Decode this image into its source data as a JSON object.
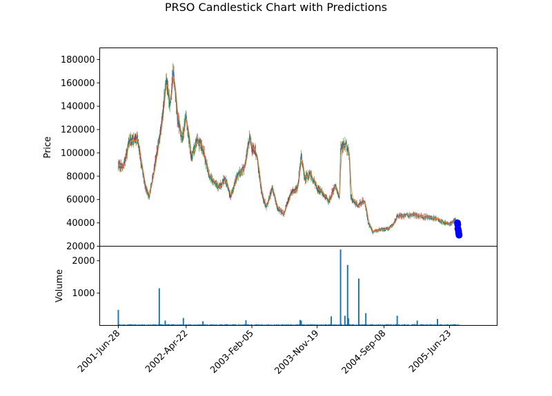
{
  "chart_data": [
    {
      "type": "candlestick",
      "title": "PRSO Candlestick Chart with Predictions",
      "ylabel": "Price",
      "ylim": [
        20000,
        190000
      ],
      "yticks": [
        20000,
        40000,
        60000,
        80000,
        100000,
        120000,
        140000,
        160000,
        180000
      ],
      "x_tick_labels": [
        "2001-Jun-28",
        "2002-Apr-22",
        "2003-Feb-05",
        "2003-Nov-19",
        "2004-Sep-08",
        "2005-Jun-23"
      ],
      "colors": {
        "up": "#2ca02c",
        "down": "#d62728",
        "line1": "#1f77b4",
        "line2": "#ff7f0e",
        "prediction": "#0000ff"
      },
      "price_trend": [
        {
          "x": "2001-Jun-28",
          "y": 90000
        },
        {
          "x": "2001-Jul-20",
          "y": 88000
        },
        {
          "x": "2001-Aug-15",
          "y": 110000
        },
        {
          "x": "2001-Sep-20",
          "y": 112000
        },
        {
          "x": "2001-Oct-20",
          "y": 75000
        },
        {
          "x": "2001-Nov-10",
          "y": 62000
        },
        {
          "x": "2001-Dec-10",
          "y": 95000
        },
        {
          "x": "2002-Jan-05",
          "y": 125000
        },
        {
          "x": "2002-Jan-25",
          "y": 165000
        },
        {
          "x": "2002-Feb-10",
          "y": 140000
        },
        {
          "x": "2002-Feb-25",
          "y": 172000
        },
        {
          "x": "2002-Mar-15",
          "y": 130000
        },
        {
          "x": "2002-Apr-05",
          "y": 112000
        },
        {
          "x": "2002-Apr-22",
          "y": 132000
        },
        {
          "x": "2002-May-15",
          "y": 95000
        },
        {
          "x": "2002-Jun-10",
          "y": 112000
        },
        {
          "x": "2002-Jul-10",
          "y": 100000
        },
        {
          "x": "2002-Aug-01",
          "y": 80000
        },
        {
          "x": "2002-Aug-25",
          "y": 75000
        },
        {
          "x": "2002-Sep-15",
          "y": 70000
        },
        {
          "x": "2002-Oct-10",
          "y": 78000
        },
        {
          "x": "2002-Nov-05",
          "y": 62000
        },
        {
          "x": "2002-Dec-01",
          "y": 80000
        },
        {
          "x": "2003-Jan-05",
          "y": 88000
        },
        {
          "x": "2003-Jan-25",
          "y": 113000
        },
        {
          "x": "2003-Feb-05",
          "y": 105000
        },
        {
          "x": "2003-Feb-25",
          "y": 100000
        },
        {
          "x": "2003-Mar-20",
          "y": 65000
        },
        {
          "x": "2003-Apr-10",
          "y": 53000
        },
        {
          "x": "2003-May-05",
          "y": 70000
        },
        {
          "x": "2003-May-30",
          "y": 52000
        },
        {
          "x": "2003-Jun-25",
          "y": 48000
        },
        {
          "x": "2003-Jul-25",
          "y": 65000
        },
        {
          "x": "2003-Aug-25",
          "y": 70000
        },
        {
          "x": "2003-Sep-10",
          "y": 97000
        },
        {
          "x": "2003-Sep-25",
          "y": 78000
        },
        {
          "x": "2003-Oct-20",
          "y": 82000
        },
        {
          "x": "2003-Nov-19",
          "y": 70000
        },
        {
          "x": "2003-Dec-15",
          "y": 65000
        },
        {
          "x": "2004-Jan-10",
          "y": 58000
        },
        {
          "x": "2004-Feb-05",
          "y": 72000
        },
        {
          "x": "2004-Feb-25",
          "y": 62000
        },
        {
          "x": "2004-Mar-01",
          "y": 105000
        },
        {
          "x": "2004-Mar-25",
          "y": 107000
        },
        {
          "x": "2004-Apr-08",
          "y": 98000
        },
        {
          "x": "2004-Apr-15",
          "y": 61000
        },
        {
          "x": "2004-May-15",
          "y": 55000
        },
        {
          "x": "2004-Jun-15",
          "y": 59000
        },
        {
          "x": "2004-Jul-01",
          "y": 40000
        },
        {
          "x": "2004-Jul-20",
          "y": 32000
        },
        {
          "x": "2004-Aug-20",
          "y": 34000
        },
        {
          "x": "2004-Sep-25",
          "y": 35000
        },
        {
          "x": "2004-Oct-20",
          "y": 39000
        },
        {
          "x": "2004-Nov-05",
          "y": 46000
        },
        {
          "x": "2004-Dec-05",
          "y": 46000
        },
        {
          "x": "2005-Jan-20",
          "y": 47000
        },
        {
          "x": "2005-Mar-10",
          "y": 45000
        },
        {
          "x": "2005-Apr-20",
          "y": 44000
        },
        {
          "x": "2005-Jun-01",
          "y": 40000
        },
        {
          "x": "2005-Jul-01",
          "y": 39000
        },
        {
          "x": "2005-Jul-15",
          "y": 43000
        },
        {
          "x": "2005-Aug-05",
          "y": 40000
        }
      ],
      "predictions": [
        {
          "x": "2005-Jul-28",
          "y": 40000
        },
        {
          "x": "2005-Jul-29",
          "y": 38500
        },
        {
          "x": "2005-Jul-30",
          "y": 35000
        },
        {
          "x": "2005-Aug-01",
          "y": 33500
        },
        {
          "x": "2005-Aug-02",
          "y": 32000
        },
        {
          "x": "2005-Aug-03",
          "y": 30500
        },
        {
          "x": "2005-Aug-04",
          "y": 29500
        }
      ]
    },
    {
      "type": "bar",
      "ylabel": "Volume",
      "ylim": [
        0,
        2450
      ],
      "yticks": [
        1000,
        2000
      ],
      "color": "#1f77b4",
      "baseline_volume": 30,
      "spikes": [
        {
          "x": "2001-Jun-28",
          "y": 480
        },
        {
          "x": "2001-Dec-25",
          "y": 1150
        },
        {
          "x": "2002-Jan-20",
          "y": 150
        },
        {
          "x": "2002-Apr-10",
          "y": 230
        },
        {
          "x": "2002-Jul-05",
          "y": 130
        },
        {
          "x": "2003-Jan-10",
          "y": 160
        },
        {
          "x": "2003-Sep-05",
          "y": 170
        },
        {
          "x": "2003-Sep-10",
          "y": 150
        },
        {
          "x": "2004-Jan-20",
          "y": 280
        },
        {
          "x": "2004-Mar-01",
          "y": 2350
        },
        {
          "x": "2004-Mar-20",
          "y": 300
        },
        {
          "x": "2004-Apr-01",
          "y": 1870
        },
        {
          "x": "2004-Apr-05",
          "y": 220
        },
        {
          "x": "2004-May-20",
          "y": 1450
        },
        {
          "x": "2004-Jun-20",
          "y": 380
        },
        {
          "x": "2004-Nov-05",
          "y": 300
        },
        {
          "x": "2005-Feb-01",
          "y": 150
        },
        {
          "x": "2005-May-01",
          "y": 200
        }
      ]
    }
  ]
}
